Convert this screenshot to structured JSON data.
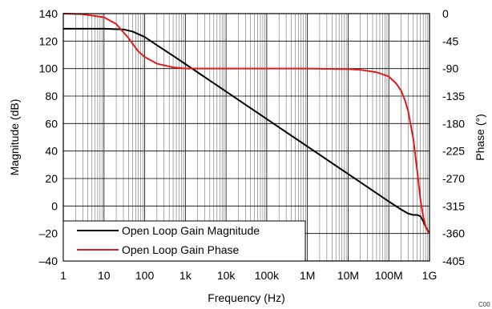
{
  "chart_data": {
    "type": "line",
    "title": "",
    "xlabel": "Frequency (Hz)",
    "ylabel": "Magnitude (dB)",
    "y2label": "Phase (°)",
    "xscale": "log",
    "xlim": [
      1,
      1000000000
    ],
    "ylim": [
      -40,
      140
    ],
    "y2lim": [
      -405,
      0
    ],
    "grid": true,
    "legend": "bottom-left",
    "x_tick_labels": [
      "1",
      "10",
      "100",
      "1k",
      "10k",
      "100k",
      "1M",
      "10M",
      "100M",
      "1G"
    ],
    "y_tick_labels": [
      "140",
      "120",
      "100",
      "80",
      "60",
      "40",
      "20",
      "0",
      "–20",
      "–40"
    ],
    "y2_tick_labels": [
      "0",
      "-45",
      "-90",
      "-135",
      "-180",
      "-225",
      "-270",
      "-315",
      "-360",
      "-405"
    ],
    "series": [
      {
        "name": "Open Loop Gain Magnitude",
        "axis": "left",
        "color": "#000000",
        "x": [
          1,
          10,
          30,
          50,
          100,
          200,
          500,
          1000,
          10000,
          100000,
          1000000,
          10000000,
          100000000,
          200000000,
          300000000,
          400000000,
          500000000,
          600000000,
          700000000,
          800000000,
          1000000000
        ],
        "y": [
          129,
          129,
          128.5,
          127,
          123,
          117,
          109.3,
          103.3,
          83.3,
          63.3,
          43.3,
          23.3,
          3.3,
          -2.5,
          -5.5,
          -6.5,
          -6.5,
          -7.5,
          -11,
          -15,
          -20
        ]
      },
      {
        "name": "Open Loop Gain Phase",
        "axis": "right",
        "color": "#e31a1c",
        "x": [
          1,
          3,
          10,
          20,
          40,
          70,
          100,
          200,
          500,
          1000,
          10000,
          100000,
          1000000,
          10000000,
          20000000,
          50000000,
          100000000,
          150000000,
          200000000,
          250000000,
          300000000,
          400000000,
          500000000,
          600000000,
          700000000,
          800000000,
          900000000,
          1000000000
        ],
        "y": [
          0,
          -1,
          -6,
          -17,
          -40,
          -62,
          -71,
          -82,
          -88,
          -90,
          -90,
          -90,
          -90,
          -91,
          -92,
          -96,
          -103,
          -114,
          -126,
          -142,
          -160,
          -205,
          -258,
          -305,
          -332,
          -348,
          -356,
          -360
        ]
      }
    ]
  },
  "corner_code": "C00"
}
